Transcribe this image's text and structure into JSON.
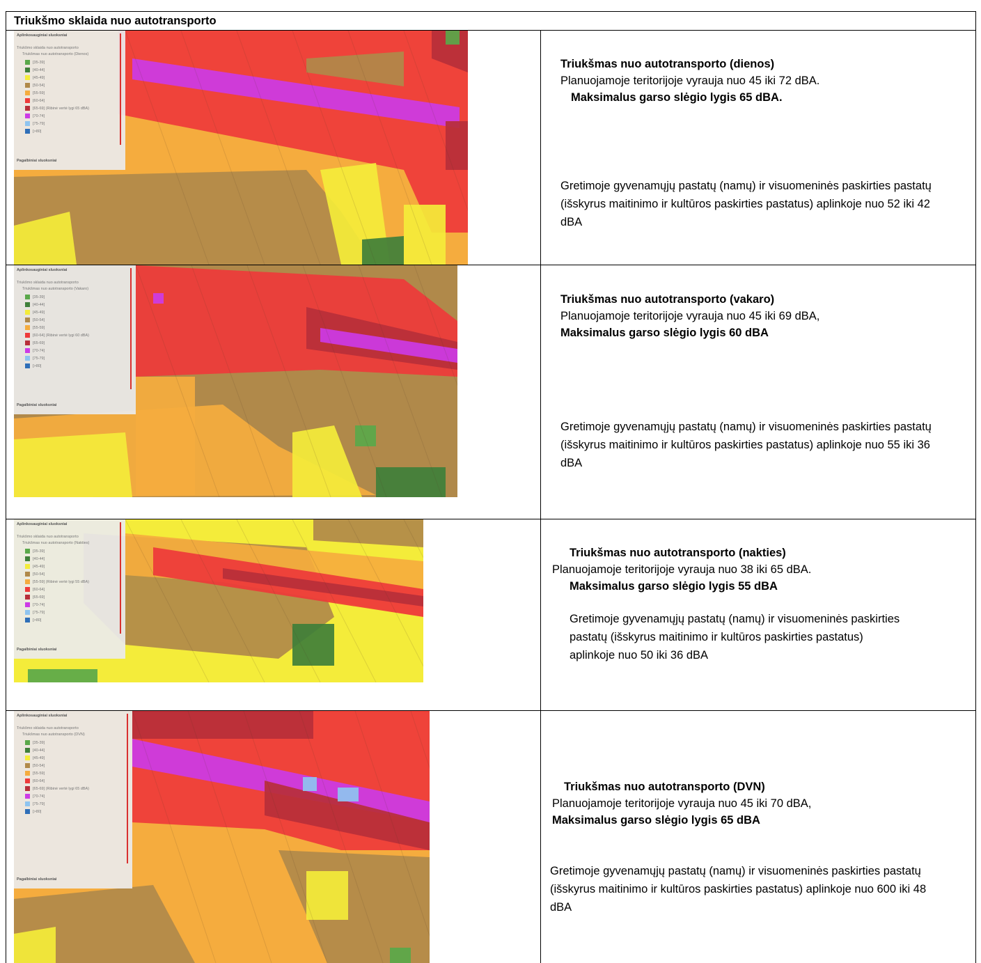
{
  "header": {
    "title": "Triukšmo sklaida nuo autotransporto"
  },
  "rows": [
    {
      "map": {
        "legend": {
          "title": "Aplinkosauginiai sluoksniai",
          "subtitle": "Triukšmo sklaida nuo autotransporto",
          "layer": "Triukšmas nuo autotransporto (Dienos)",
          "items": [
            "[35-39]",
            "[40-44]",
            "[45-49]",
            "[50-54]",
            "[55-59]",
            "[60-64]",
            "[65-69] (Ribinė vertė lygi 65 dBA)",
            "[70-74]",
            "[75-79]",
            "[>80]"
          ],
          "footer": "Pagalbiniai sluoksniai"
        }
      },
      "text": {
        "heading": "Triukšmas nuo autotransporto (dienos)",
        "line": "Planuojamoje teritorijoje vyrauja nuo 45 iki 72 dBA.",
        "max": "Maksimalus garso slėgio lygis 65 dBA.",
        "neighbors": "Gretimoje gyvenamųjų pastatų (namų) ir visuomeninės paskirties pastatų (išskyrus maitinimo ir kultūros paskirties pastatus) aplinkoje nuo 52 iki 42 dBA"
      }
    },
    {
      "map": {
        "legend": {
          "title": "Aplinkosauginiai sluoksniai",
          "subtitle": "Triukšmo sklaida nuo autotransporto",
          "layer": "Triukšmas nuo autotransporto (Vakaro)",
          "items": [
            "[35-39]",
            "[40-44]",
            "[45-49]",
            "[50-54]",
            "[55-59]",
            "[60-64] (Ribinė vertė lygi 60 dBA)",
            "[65-69]",
            "[70-74]",
            "[75-79]",
            "[>80]"
          ],
          "footer": "Pagalbiniai sluoksniai"
        }
      },
      "text": {
        "heading": "Triukšmas nuo autotransporto (vakaro)",
        "line": "Planuojamoje teritorijoje vyrauja nuo 45 iki 69 dBA,",
        "max": "Maksimalus garso slėgio lygis 60 dBA",
        "neighbors": "Gretimoje gyvenamųjų pastatų (namų) ir visuomeninės paskirties pastatų (išskyrus maitinimo ir kultūros paskirties pastatus) aplinkoje nuo 55 iki 36 dBA"
      }
    },
    {
      "map": {
        "legend": {
          "title": "Aplinkosauginiai sluoksniai",
          "subtitle": "Triukšmo sklaida nuo autotransporto",
          "layer": "Triukšmas nuo autotransporto (Nakties)",
          "items": [
            "[35-39]",
            "[40-44]",
            "[45-49]",
            "[50-54]",
            "[55-59] (Ribinė vertė lygi 55 dBA)",
            "[60-64]",
            "[65-69]",
            "[70-74]",
            "[75-79]",
            "[>80]"
          ],
          "footer": "Pagalbiniai sluoksniai"
        }
      },
      "text": {
        "heading": "Triukšmas nuo autotransporto (nakties)",
        "line": "Planuojamoje teritorijoje vyrauja nuo 38 iki 65 dBA.",
        "max": "Maksimalus garso slėgio lygis 55 dBA",
        "neighbors": "Gretimoje gyvenamųjų pastatų (namų) ir visuomeninės paskirties pastatų (išskyrus maitinimo ir kultūros paskirties pastatus) aplinkoje nuo 50 iki 36 dBA"
      }
    },
    {
      "map": {
        "legend": {
          "title": "Aplinkosauginiai sluoksniai",
          "subtitle": "Triukšmo sklaida nuo autotransporto",
          "layer": "Triukšmas nuo autotransporto (DVN)",
          "items": [
            "[35-39]",
            "[40-44]",
            "[45-49]",
            "[50-54]",
            "[55-59]",
            "[60-64]",
            "[65-69] (Ribinė vertė lygi 65 dBA)",
            "[70-74]",
            "[75-79]",
            "[>80]"
          ],
          "footer": "Pagalbiniai sluoksniai"
        }
      },
      "text": {
        "heading": "Triukšmas nuo autotransporto (DVN)",
        "line": "Planuojamoje teritorijoje vyrauja nuo 45 iki 70 dBA,",
        "max": "Maksimalus garso slėgio lygis 65 dBA",
        "neighbors": "Gretimoje gyvenamųjų pastatų (namų) ir visuomeninės paskirties pastatų (išskyrus maitinimo ir kultūros paskirties pastatus) aplinkoje nuo 600 iki 48 dBA"
      }
    }
  ]
}
